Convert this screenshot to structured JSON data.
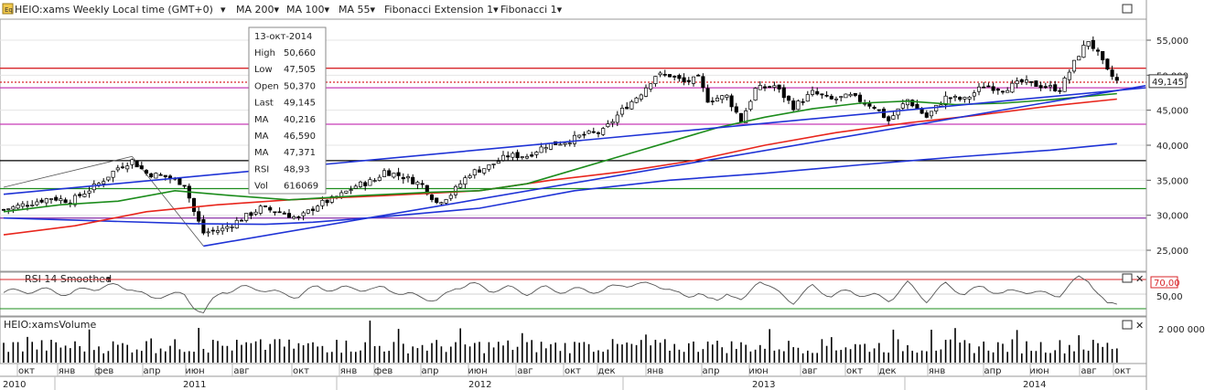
{
  "header": {
    "symbol_label": "HEIO:xams Weekly Local time (GMT+0)",
    "indicators": [
      {
        "label": "MA 200",
        "color": "#1f33d6"
      },
      {
        "label": "MA 100",
        "color": "#e8251c"
      },
      {
        "label": "MA 55",
        "color": "#1c8c1c"
      },
      {
        "label": "Fibonacci Extension 1",
        "color": "#222222"
      },
      {
        "label": "Fibonacci 1",
        "color": "#222222"
      }
    ]
  },
  "tooltip": {
    "date": "13-окт-2014",
    "rows": [
      {
        "label": "High",
        "value": "50,660",
        "color": "#222222"
      },
      {
        "label": "Low",
        "value": "47,505",
        "color": "#222222"
      },
      {
        "label": "Open",
        "value": "50,370",
        "color": "#222222"
      },
      {
        "label": "Last",
        "value": "49,145",
        "color": "#222222"
      },
      {
        "label": "MA",
        "value": "40,216",
        "color": "#1f33d6"
      },
      {
        "label": "MA",
        "value": "46,590",
        "color": "#e8251c"
      },
      {
        "label": "MA",
        "value": "47,371",
        "color": "#1c8c1c"
      },
      {
        "label": "RSI",
        "value": "48,93",
        "color": "#222222"
      },
      {
        "label": "Vol",
        "value": "616069",
        "color": "#222222"
      }
    ]
  },
  "rsi_panel": {
    "title": "RSI 14 Smoothed",
    "level_high": "70,00",
    "level_mid": "50,00"
  },
  "volume_panel": {
    "title": "HEIO:xamsVolume",
    "scale_label": "2 000 000"
  },
  "colors": {
    "up": "#ffffff",
    "down": "#000000",
    "fib_red": "#d8262a",
    "fib_magenta": "#c63cb6",
    "fib_green": "#1c8c1c",
    "fib_purple": "#8a2fa8"
  },
  "chart_data": {
    "type": "candlestick",
    "ylim": [
      22000,
      58000
    ],
    "y_ticks": [
      "25,000",
      "30,000",
      "35,000",
      "40,000",
      "45,000",
      "50,000",
      "55,000"
    ],
    "last_price_label": "49,145",
    "months": [
      "окт",
      "янв",
      "фев",
      "апр",
      "июн",
      "авг",
      "окт",
      "янв",
      "фев",
      "апр",
      "июн",
      "авг",
      "окт",
      "дек",
      "янв",
      "апр",
      "июн",
      "авг",
      "окт",
      "дек",
      "янв",
      "апр",
      "июн",
      "авг",
      "окт"
    ],
    "years": [
      "2010",
      "2011",
      "2012",
      "2013",
      "2014"
    ],
    "horizontal_levels": [
      {
        "value": 51000,
        "color": "#d8262a",
        "style": "solid"
      },
      {
        "value": 49000,
        "color": "#d8262a",
        "style": "dotted"
      },
      {
        "value": 48200,
        "color": "#c63cb6",
        "style": "solid"
      },
      {
        "value": 43000,
        "color": "#c63cb6",
        "style": "solid"
      },
      {
        "value": 37800,
        "color": "#000000",
        "style": "solid"
      },
      {
        "value": 33800,
        "color": "#1c8c1c",
        "style": "solid"
      },
      {
        "value": 29600,
        "color": "#8a2fa8",
        "style": "solid"
      }
    ],
    "price_path": [
      [
        0,
        30800
      ],
      [
        10,
        32500
      ],
      [
        14,
        32000
      ],
      [
        20,
        34500
      ],
      [
        24,
        36800
      ],
      [
        27,
        37800
      ],
      [
        30,
        36000
      ],
      [
        34,
        35500
      ],
      [
        38,
        34500
      ],
      [
        40,
        30500
      ],
      [
        42,
        27500
      ],
      [
        46,
        28000
      ],
      [
        50,
        29500
      ],
      [
        54,
        31000
      ],
      [
        58,
        30500
      ],
      [
        62,
        29500
      ],
      [
        66,
        31500
      ],
      [
        70,
        32500
      ],
      [
        74,
        34200
      ],
      [
        78,
        35000
      ],
      [
        80,
        36300
      ],
      [
        84,
        35500
      ],
      [
        88,
        34300
      ],
      [
        91,
        31800
      ],
      [
        94,
        33000
      ],
      [
        98,
        36000
      ],
      [
        102,
        37000
      ],
      [
        106,
        38500
      ],
      [
        110,
        38500
      ],
      [
        114,
        40000
      ],
      [
        118,
        40500
      ],
      [
        122,
        41500
      ],
      [
        126,
        42000
      ],
      [
        130,
        45000
      ],
      [
        134,
        47500
      ],
      [
        137,
        50000
      ],
      [
        140,
        50000
      ],
      [
        143,
        49000
      ],
      [
        146,
        49500
      ],
      [
        148,
        46500
      ],
      [
        152,
        47000
      ],
      [
        155,
        43500
      ],
      [
        158,
        48000
      ],
      [
        162,
        48500
      ],
      [
        166,
        45500
      ],
      [
        170,
        47500
      ],
      [
        174,
        46500
      ],
      [
        178,
        47000
      ],
      [
        183,
        45500
      ],
      [
        186,
        43500
      ],
      [
        190,
        46500
      ],
      [
        194,
        44000
      ],
      [
        198,
        46800
      ],
      [
        202,
        46500
      ],
      [
        206,
        48500
      ],
      [
        210,
        48000
      ],
      [
        214,
        49000
      ],
      [
        218,
        48500
      ],
      [
        222,
        48000
      ],
      [
        224,
        50500
      ],
      [
        226,
        53000
      ],
      [
        228,
        55000
      ],
      [
        230,
        53000
      ],
      [
        232,
        50500
      ],
      [
        234,
        49145
      ]
    ],
    "ma200": [
      [
        0,
        29600
      ],
      [
        20,
        29200
      ],
      [
        40,
        28800
      ],
      [
        55,
        28700
      ],
      [
        65,
        29000
      ],
      [
        80,
        29800
      ],
      [
        100,
        31000
      ],
      [
        120,
        33500
      ],
      [
        140,
        35000
      ],
      [
        160,
        36000
      ],
      [
        180,
        37200
      ],
      [
        200,
        38300
      ],
      [
        220,
        39300
      ],
      [
        234,
        40216
      ]
    ],
    "ma100": [
      [
        0,
        27200
      ],
      [
        15,
        28500
      ],
      [
        30,
        30500
      ],
      [
        45,
        31500
      ],
      [
        60,
        32200
      ],
      [
        80,
        32800
      ],
      [
        100,
        33500
      ],
      [
        115,
        35000
      ],
      [
        130,
        36200
      ],
      [
        145,
        37800
      ],
      [
        160,
        40000
      ],
      [
        175,
        41800
      ],
      [
        190,
        43200
      ],
      [
        205,
        44300
      ],
      [
        220,
        45600
      ],
      [
        234,
        46590
      ]
    ],
    "ma55": [
      [
        0,
        30500
      ],
      [
        12,
        31500
      ],
      [
        24,
        32000
      ],
      [
        36,
        33500
      ],
      [
        48,
        32800
      ],
      [
        60,
        32200
      ],
      [
        75,
        32800
      ],
      [
        90,
        33300
      ],
      [
        100,
        33500
      ],
      [
        110,
        34500
      ],
      [
        120,
        36500
      ],
      [
        130,
        38500
      ],
      [
        140,
        40500
      ],
      [
        150,
        42500
      ],
      [
        160,
        44000
      ],
      [
        170,
        45200
      ],
      [
        180,
        46000
      ],
      [
        190,
        46300
      ],
      [
        200,
        45800
      ],
      [
        210,
        46000
      ],
      [
        220,
        46500
      ],
      [
        234,
        47371
      ]
    ],
    "trend_lines": [
      {
        "from": [
          42,
          25600
        ],
        "to": [
          240,
          48500
        ],
        "color": "#1f33d6"
      },
      {
        "from": [
          0,
          33000
        ],
        "to": [
          240,
          48200
        ],
        "color": "#1f33d6"
      }
    ],
    "fib_extension_lines": [
      {
        "from": [
          0,
          34000
        ],
        "to": [
          27,
          38400
        ]
      },
      {
        "from": [
          27,
          38400
        ],
        "to": [
          42,
          25600
        ]
      }
    ],
    "rsi_levels": {
      "high": 70,
      "mid": 50,
      "low": 30
    },
    "rsi_range": [
      20,
      80
    ]
  }
}
